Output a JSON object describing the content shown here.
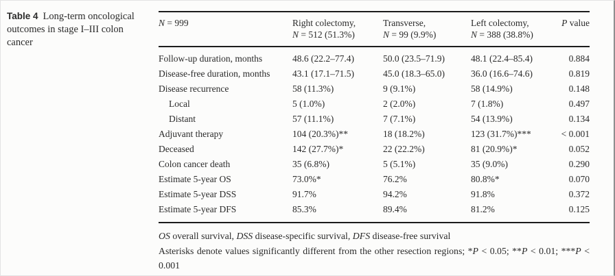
{
  "caption": {
    "runs": [
      [
        "b",
        "Table 4"
      ],
      [
        "r",
        "Long-term oncological outcomes in stage I–III colon cancer"
      ]
    ]
  },
  "table": {
    "header": {
      "col0_runs": [
        [
          "i",
          "N"
        ],
        [
          "r",
          " = 999"
        ]
      ],
      "columns": [
        {
          "line1": "Right colectomy,",
          "line2_runs": [
            [
              "i",
              "N"
            ],
            [
              "r",
              " = 512 (51.3%)"
            ]
          ]
        },
        {
          "line1": "Transverse,",
          "line2_runs": [
            [
              "i",
              "N"
            ],
            [
              "r",
              " = 99 (9.9%)"
            ]
          ]
        },
        {
          "line1": "Left colectomy,",
          "line2_runs": [
            [
              "i",
              "N"
            ],
            [
              "r",
              " = 388 (38.8%)"
            ]
          ]
        }
      ],
      "pvalue_runs": [
        [
          "i",
          "P"
        ],
        [
          "r",
          " value"
        ]
      ]
    },
    "rows": [
      {
        "label": "Follow-up duration, months",
        "indent": false,
        "right": "48.6 (22.2–77.4)",
        "transverse": "50.0 (23.5–71.9)",
        "left": "48.1 (22.4–85.4)",
        "p": "0.884"
      },
      {
        "label": "Disease-free duration, months",
        "indent": false,
        "right": "43.1 (17.1–71.5)",
        "transverse": "45.0 (18.3–65.0)",
        "left": "36.0 (16.6–74.6)",
        "p": "0.819"
      },
      {
        "label": "Disease recurrence",
        "indent": false,
        "right": "58 (11.3%)",
        "transverse": "9 (9.1%)",
        "left": "58 (14.9%)",
        "p": "0.148"
      },
      {
        "label": "Local",
        "indent": true,
        "right": "5 (1.0%)",
        "transverse": "2 (2.0%)",
        "left": "7 (1.8%)",
        "p": "0.497"
      },
      {
        "label": "Distant",
        "indent": true,
        "right": "57 (11.1%)",
        "transverse": "7 (7.1%)",
        "left": "54 (13.9%)",
        "p": "0.134"
      },
      {
        "label": "Adjuvant therapy",
        "indent": false,
        "right": "104 (20.3%)**",
        "transverse": "18 (18.2%)",
        "left": "123 (31.7%)***",
        "p": "< 0.001"
      },
      {
        "label": "Deceased",
        "indent": false,
        "right": "142 (27.7%)*",
        "transverse": "22 (22.2%)",
        "left": "81 (20.9%)*",
        "p": "0.052"
      },
      {
        "label": "Colon cancer death",
        "indent": false,
        "right": "35 (6.8%)",
        "transverse": "5 (5.1%)",
        "left": "35 (9.0%)",
        "p": "0.290"
      },
      {
        "label": "Estimate 5-year OS",
        "indent": false,
        "right": "73.0%*",
        "transverse": "76.2%",
        "left": "80.8%*",
        "p": "0.070"
      },
      {
        "label": "Estimate 5-year DSS",
        "indent": false,
        "right": "91.7%",
        "transverse": "94.2%",
        "left": "91.8%",
        "p": "0.372"
      },
      {
        "label": "Estimate 5-year DFS",
        "indent": false,
        "right": "85.3%",
        "transverse": "89.4%",
        "left": "81.2%",
        "p": "0.125"
      }
    ]
  },
  "footnotes": {
    "abbrev_runs": [
      [
        "i",
        "OS"
      ],
      [
        "r",
        " overall survival, "
      ],
      [
        "i",
        "DSS"
      ],
      [
        "r",
        " disease-specific survival, "
      ],
      [
        "i",
        "DFS"
      ],
      [
        "r",
        " disease-free survival"
      ]
    ],
    "asterisk_runs": [
      [
        "r",
        "Asterisks denote values significantly different from the other resection regions; *"
      ],
      [
        "i",
        "P"
      ],
      [
        "r",
        " < 0.05; **"
      ],
      [
        "i",
        "P"
      ],
      [
        "r",
        " < 0.01; ***"
      ],
      [
        "i",
        "P"
      ],
      [
        "r",
        " < 0.001"
      ]
    ]
  }
}
